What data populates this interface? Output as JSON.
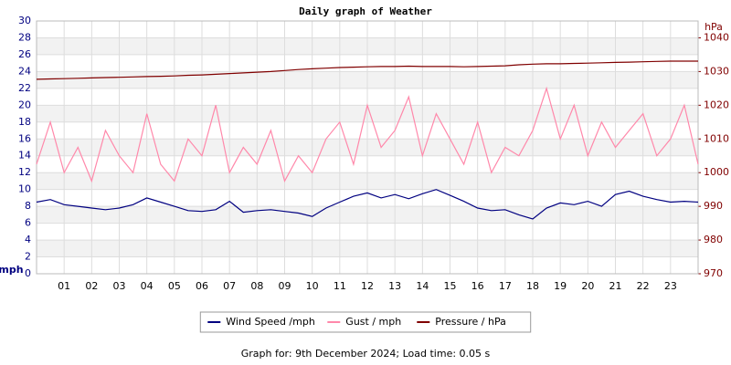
{
  "chart_data": {
    "type": "line",
    "title": "Daily graph of Weather",
    "ylabel": "mph",
    "y2label": "hPa",
    "footer": "Graph for: 9th December 2024; Load time: 0.05 s",
    "x": [
      0,
      0.5,
      1,
      1.5,
      2,
      2.5,
      3,
      3.5,
      4,
      4.5,
      5,
      5.5,
      6,
      6.5,
      7,
      7.5,
      8,
      8.5,
      9,
      9.5,
      10,
      10.5,
      11,
      11.5,
      12,
      12.5,
      13,
      13.5,
      14,
      14.5,
      15,
      15.5,
      16,
      16.5,
      17,
      17.5,
      18,
      18.5,
      19,
      19.5,
      20,
      20.5,
      21,
      21.5,
      22,
      22.5,
      23,
      23.5,
      24
    ],
    "xlim": [
      0,
      24
    ],
    "xticks": [
      {
        "value": 1,
        "label": "01"
      },
      {
        "value": 2,
        "label": "02"
      },
      {
        "value": 3,
        "label": "03"
      },
      {
        "value": 4,
        "label": "04"
      },
      {
        "value": 5,
        "label": "05"
      },
      {
        "value": 6,
        "label": "06"
      },
      {
        "value": 7,
        "label": "07"
      },
      {
        "value": 8,
        "label": "08"
      },
      {
        "value": 9,
        "label": "09"
      },
      {
        "value": 10,
        "label": "10"
      },
      {
        "value": 11,
        "label": "11"
      },
      {
        "value": 12,
        "label": "12"
      },
      {
        "value": 13,
        "label": "13"
      },
      {
        "value": 14,
        "label": "14"
      },
      {
        "value": 15,
        "label": "15"
      },
      {
        "value": 16,
        "label": "16"
      },
      {
        "value": 17,
        "label": "17"
      },
      {
        "value": 18,
        "label": "18"
      },
      {
        "value": 19,
        "label": "19"
      },
      {
        "value": 20,
        "label": "20"
      },
      {
        "value": 21,
        "label": "21"
      },
      {
        "value": 22,
        "label": "22"
      },
      {
        "value": 23,
        "label": "23"
      }
    ],
    "ylim": [
      0,
      30
    ],
    "yticks": [
      0,
      2,
      4,
      6,
      8,
      10,
      12,
      14,
      16,
      18,
      20,
      22,
      24,
      26,
      28,
      30
    ],
    "y2lim": [
      970,
      1045
    ],
    "y2ticks": [
      970,
      980,
      990,
      1000,
      1010,
      1020,
      1030,
      1040
    ],
    "grid": true,
    "series": [
      {
        "name": "Wind Speed /mph",
        "color": "#000080",
        "values": [
          8.5,
          8.8,
          8.2,
          8.0,
          7.8,
          7.6,
          7.8,
          8.2,
          9.0,
          8.5,
          8.0,
          7.5,
          7.4,
          7.6,
          8.6,
          7.3,
          7.5,
          7.6,
          7.4,
          7.2,
          6.8,
          7.8,
          8.5,
          9.2,
          9.6,
          9.0,
          9.4,
          8.9,
          9.5,
          10.0,
          9.3,
          8.6,
          7.8,
          7.5,
          7.6,
          7.0,
          6.5,
          7.8,
          8.4,
          8.2,
          8.6,
          8.0,
          9.4,
          9.8,
          9.2,
          8.8,
          8.5,
          8.6,
          8.5
        ]
      },
      {
        "name": "Gust / mph",
        "color": "#ff88aa",
        "values": [
          13,
          18,
          12,
          15,
          11,
          17,
          14,
          12,
          19,
          13,
          11,
          16,
          14,
          20,
          12,
          15,
          13,
          17,
          11,
          14,
          12,
          16,
          18,
          13,
          20,
          15,
          17,
          21,
          14,
          19,
          16,
          13,
          18,
          12,
          15,
          14,
          17,
          22,
          16,
          20,
          14,
          18,
          15,
          17,
          19,
          14,
          16,
          20,
          13
        ]
      },
      {
        "name": "Pressure / hPa",
        "color": "#800000",
        "axis": "y2",
        "values": [
          1027.7,
          1027.8,
          1027.9,
          1028.0,
          1028.1,
          1028.2,
          1028.3,
          1028.4,
          1028.5,
          1028.6,
          1028.7,
          1028.9,
          1029.0,
          1029.2,
          1029.4,
          1029.6,
          1029.8,
          1030.0,
          1030.3,
          1030.6,
          1030.8,
          1031.0,
          1031.2,
          1031.3,
          1031.4,
          1031.5,
          1031.5,
          1031.6,
          1031.5,
          1031.5,
          1031.5,
          1031.4,
          1031.5,
          1031.6,
          1031.7,
          1032.0,
          1032.2,
          1032.3,
          1032.3,
          1032.4,
          1032.5,
          1032.6,
          1032.7,
          1032.8,
          1032.9,
          1033.0,
          1033.1,
          1033.1,
          1033.1
        ]
      }
    ]
  }
}
